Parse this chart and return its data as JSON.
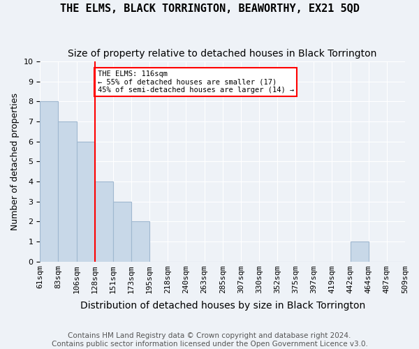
{
  "title": "THE ELMS, BLACK TORRINGTON, BEAWORTHY, EX21 5QD",
  "subtitle": "Size of property relative to detached houses in Black Torrington",
  "xlabel": "Distribution of detached houses by size in Black Torrington",
  "ylabel": "Number of detached properties",
  "footer_line1": "Contains HM Land Registry data © Crown copyright and database right 2024.",
  "footer_line2": "Contains public sector information licensed under the Open Government Licence v3.0.",
  "bin_labels": [
    "61sqm",
    "83sqm",
    "106sqm",
    "128sqm",
    "151sqm",
    "173sqm",
    "195sqm",
    "218sqm",
    "240sqm",
    "263sqm",
    "285sqm",
    "307sqm",
    "330sqm",
    "352sqm",
    "375sqm",
    "397sqm",
    "419sqm",
    "442sqm",
    "464sqm",
    "487sqm",
    "509sqm"
  ],
  "values": [
    8,
    7,
    6,
    4,
    3,
    2,
    0,
    0,
    0,
    0,
    0,
    0,
    0,
    0,
    0,
    0,
    0,
    1,
    0,
    0
  ],
  "bar_color": "#c8d8e8",
  "bar_edgecolor": "#a0b8d0",
  "vline_x": 2.5,
  "vline_color": "red",
  "annotation_text": "THE ELMS: 116sqm\n← 55% of detached houses are smaller (17)\n45% of semi-detached houses are larger (14) →",
  "annotation_bbox_edgecolor": "red",
  "annotation_bbox_facecolor": "white",
  "ylim": [
    0,
    10
  ],
  "yticks": [
    0,
    1,
    2,
    3,
    4,
    5,
    6,
    7,
    8,
    9,
    10
  ],
  "background_color": "#eef2f7",
  "plot_bg_color": "#eef2f7",
  "grid_color": "#ffffff",
  "title_fontsize": 11,
  "subtitle_fontsize": 10,
  "xlabel_fontsize": 10,
  "ylabel_fontsize": 9,
  "tick_fontsize": 8,
  "footer_fontsize": 7.5
}
